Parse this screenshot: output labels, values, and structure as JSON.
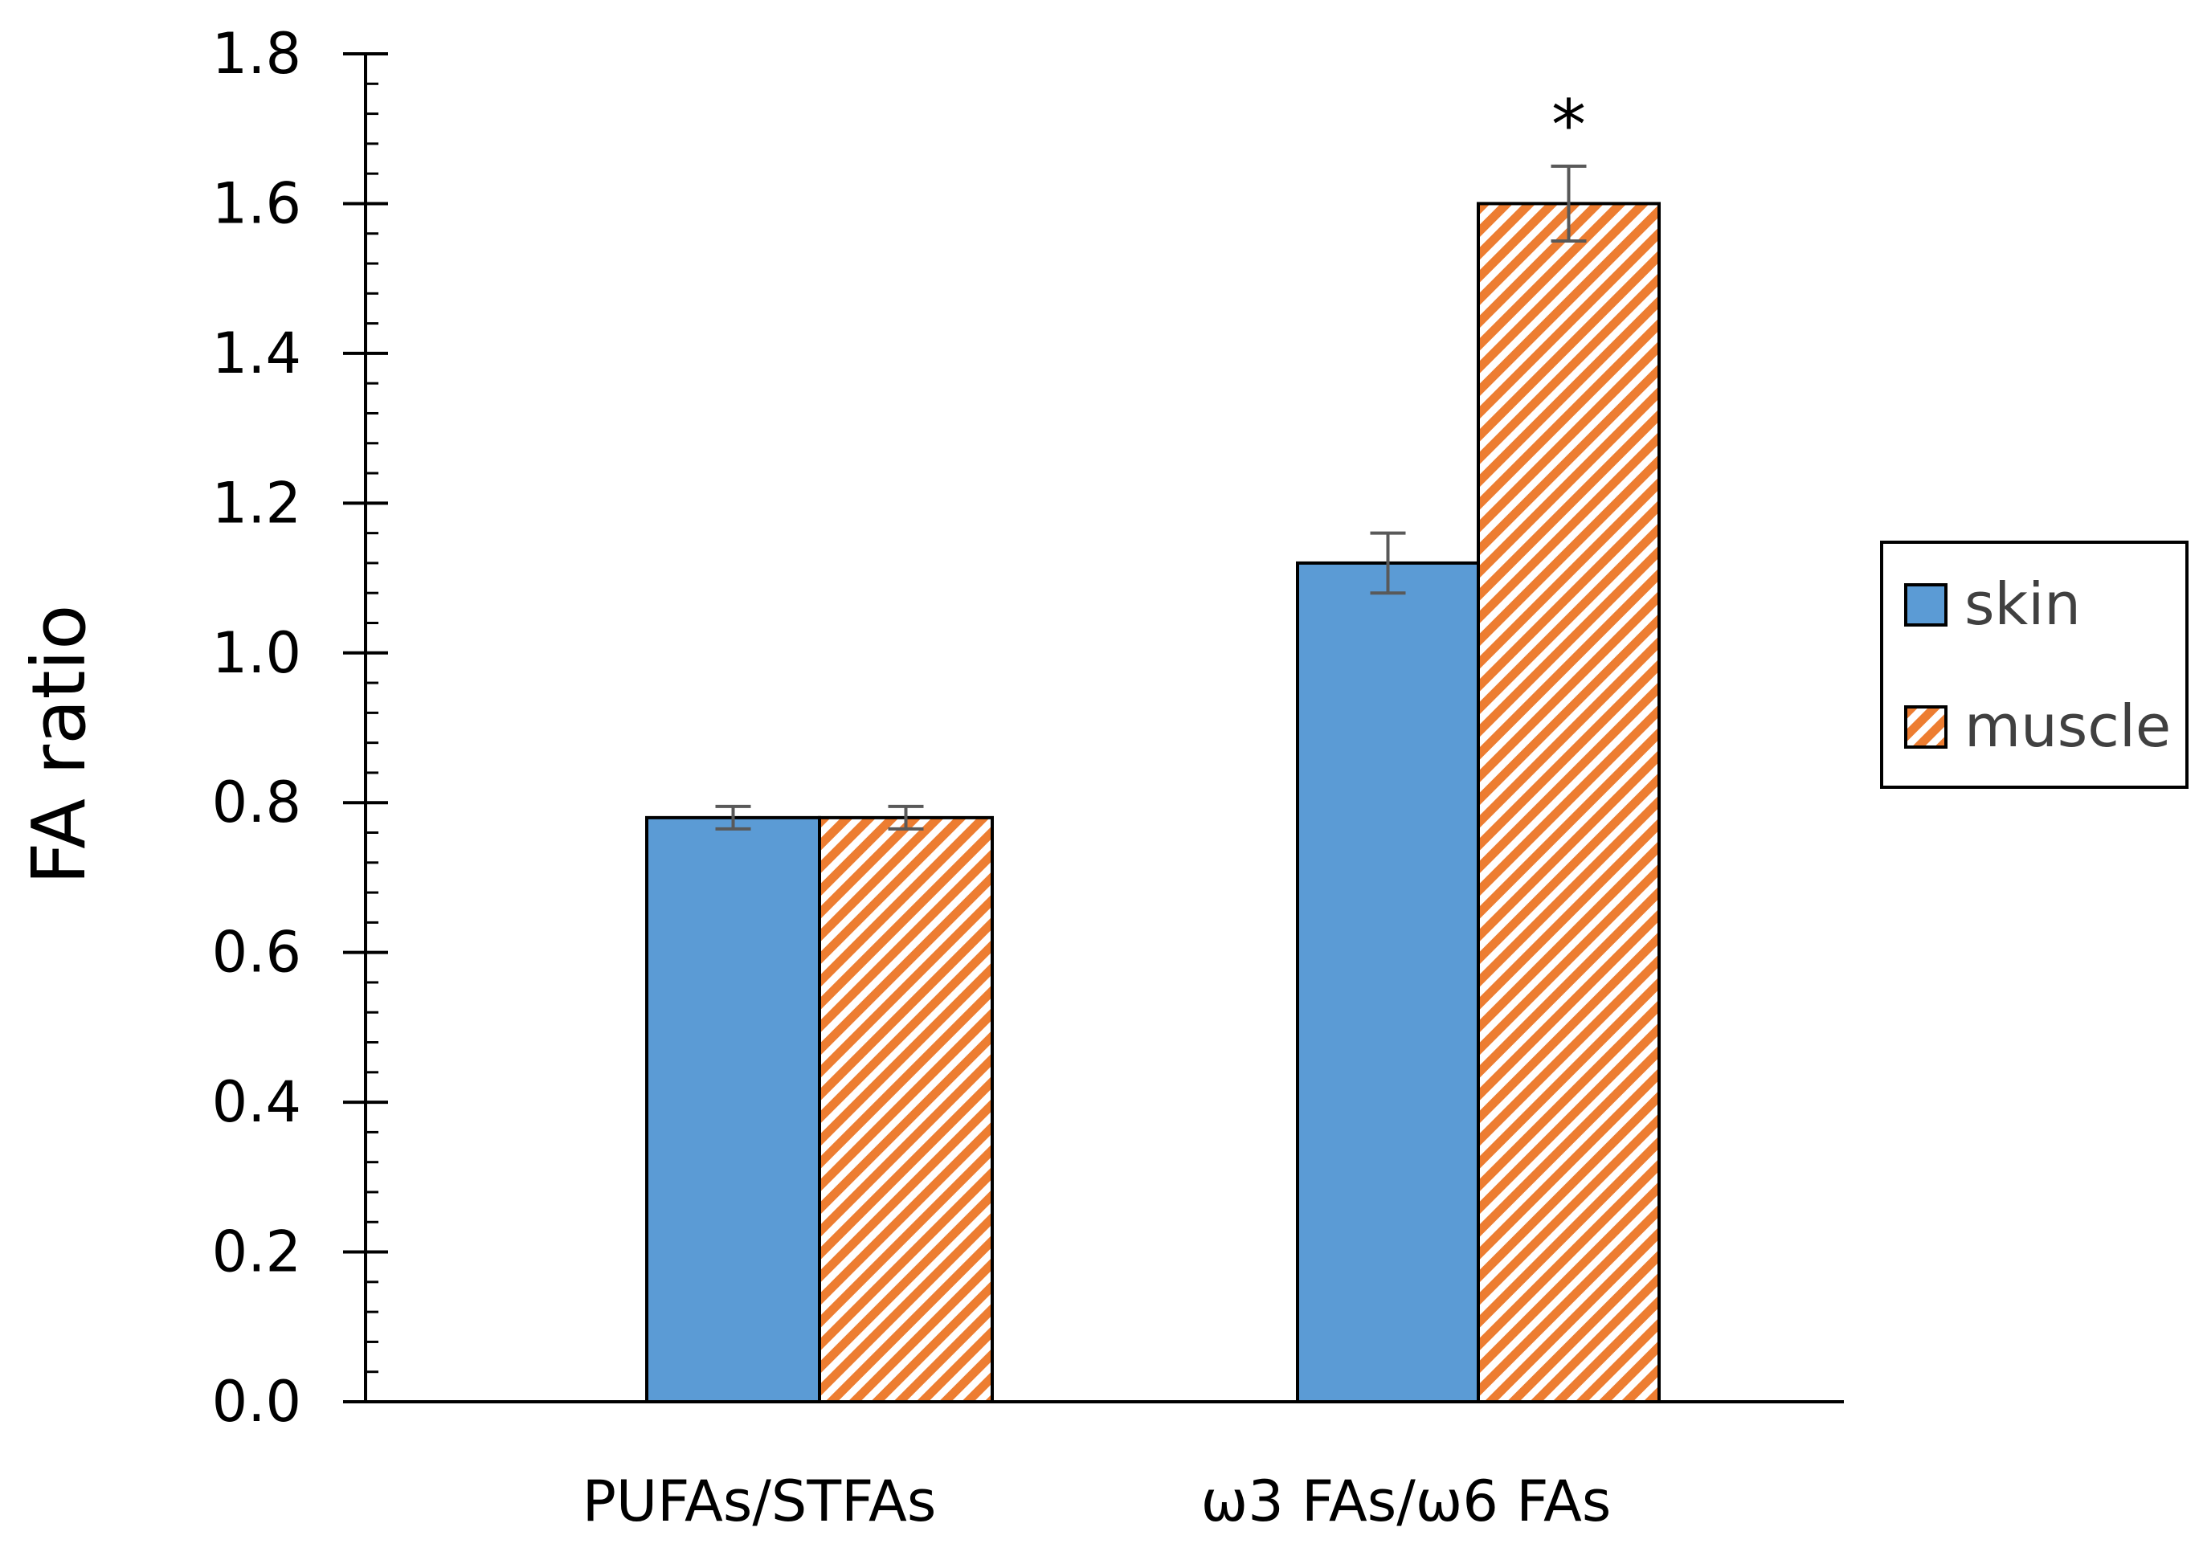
{
  "chart_data": {
    "type": "bar",
    "categories": [
      "PUFAs/STFAs",
      "ω3 FAs/ω6 FAs"
    ],
    "series": [
      {
        "name": "skin",
        "values": [
          0.78,
          1.12
        ],
        "errors": [
          0.015,
          0.04
        ],
        "color": "#5b9bd5",
        "pattern": "solid"
      },
      {
        "name": "muscle",
        "values": [
          0.78,
          1.6
        ],
        "errors": [
          0.015,
          0.05
        ],
        "color": "#ed7d31",
        "pattern": "diagonal-hatch"
      }
    ],
    "annotations": [
      {
        "text": "*",
        "category": "ω3 FAs/ω6 FAs",
        "series": "muscle"
      }
    ],
    "ylabel": "FA ratio",
    "xlabel": "",
    "ylim": [
      0,
      1.8
    ],
    "yticks": [
      "0.0",
      "0.2",
      "0.4",
      "0.6",
      "0.8",
      "1.0",
      "1.2",
      "1.4",
      "1.6",
      "1.8"
    ],
    "grid": false,
    "legend_position": "right"
  }
}
